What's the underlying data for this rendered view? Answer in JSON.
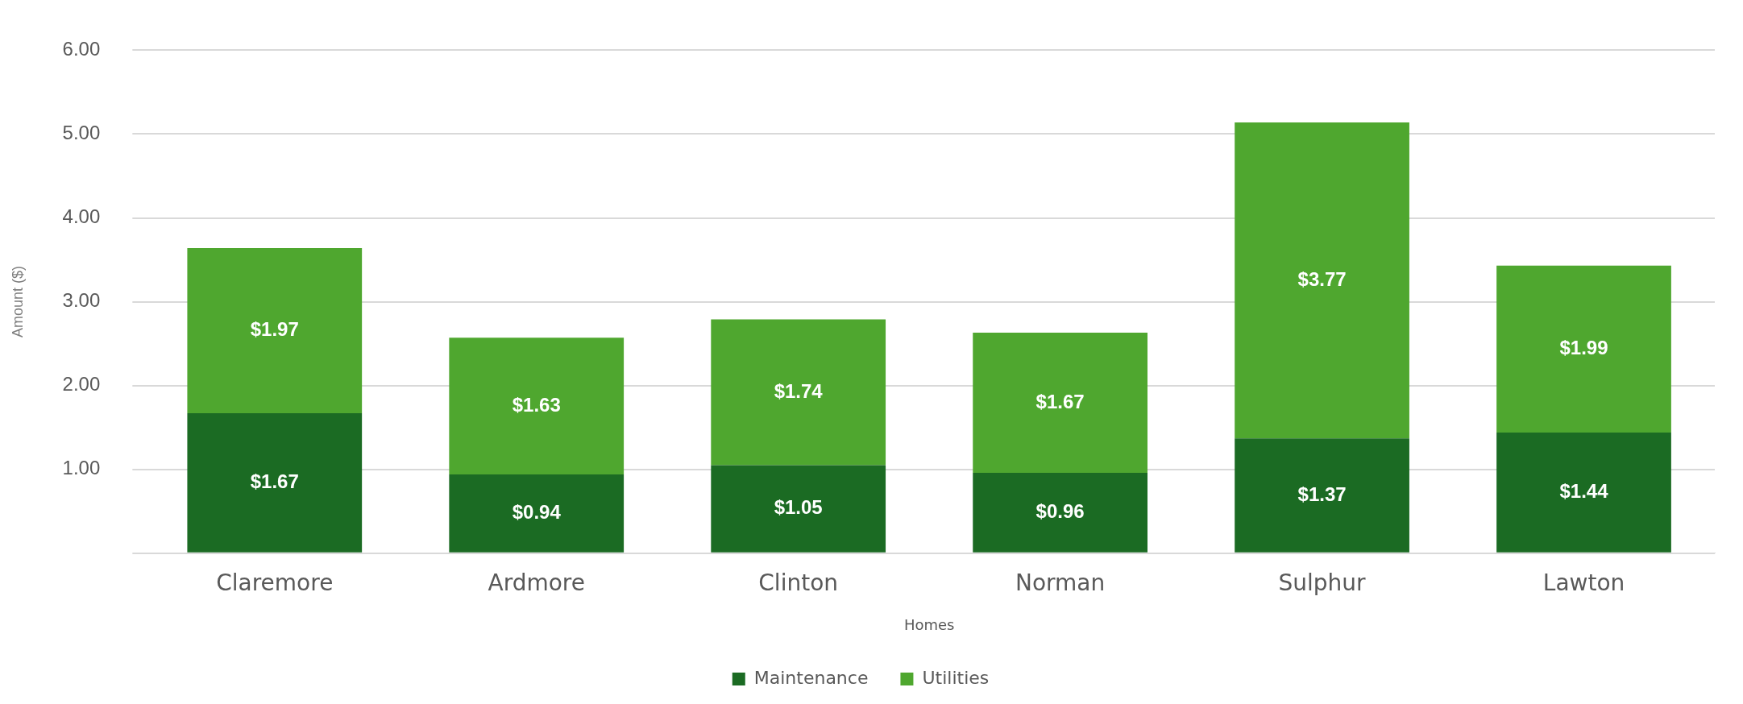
{
  "chart_data": {
    "type": "bar",
    "stacked": true,
    "xlabel": "Homes",
    "ylabel": "Amount ($)",
    "categories": [
      "Claremore",
      "Ardmore",
      "Clinton",
      "Norman",
      "Sulphur",
      "Lawton"
    ],
    "series": [
      {
        "name": "Maintenance",
        "color": "#1b6b23",
        "values": [
          1.67,
          0.94,
          1.05,
          0.96,
          1.37,
          1.44
        ],
        "value_labels": [
          "$1.67",
          "$0.94",
          "$1.05",
          "$0.96",
          "$1.37",
          "$1.44"
        ]
      },
      {
        "name": "Utilities",
        "color": "#4fa72f",
        "values": [
          1.97,
          1.63,
          1.74,
          1.67,
          3.77,
          1.99
        ],
        "value_labels": [
          "$1.97",
          "$1.63",
          "$1.74",
          "$1.67",
          "$3.77",
          "$1.99"
        ]
      }
    ],
    "ylim": [
      0,
      6
    ],
    "yticks": [
      {
        "value": 0,
        "label": null
      },
      {
        "value": 1,
        "label": "1.00"
      },
      {
        "value": 2,
        "label": "2.00"
      },
      {
        "value": 3,
        "label": "3.00"
      },
      {
        "value": 4,
        "label": "4.00"
      },
      {
        "value": 5,
        "label": "5.00"
      },
      {
        "value": 6,
        "label": "6.00"
      }
    ],
    "grid": "y",
    "legend": "bottom"
  }
}
